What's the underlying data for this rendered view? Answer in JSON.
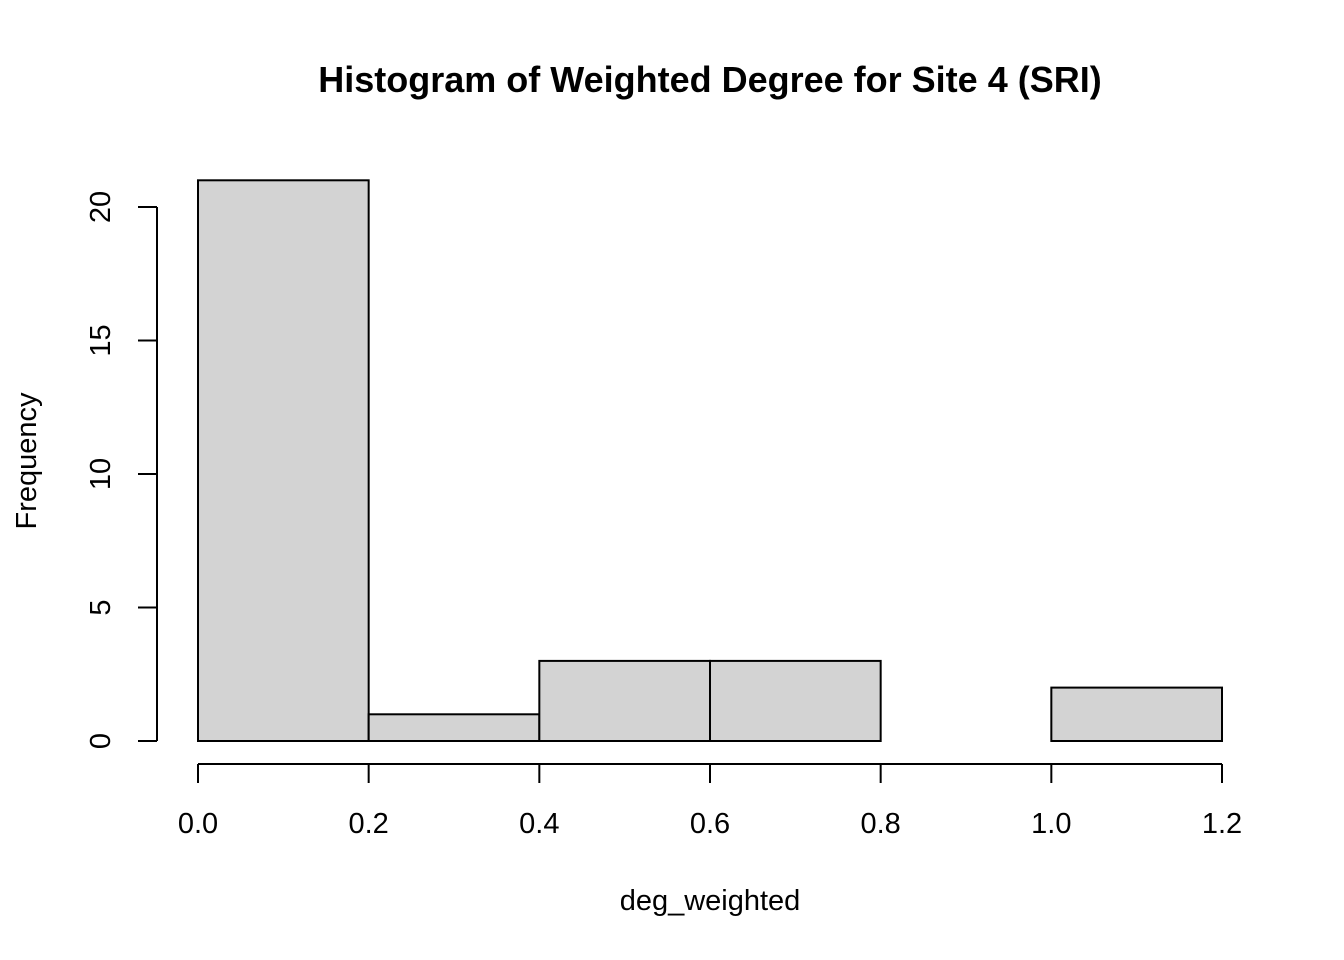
{
  "chart_data": {
    "type": "bar",
    "title": "Histogram of Weighted Degree for Site 4 (SRI)",
    "xlabel": "deg_weighted",
    "ylabel": "Frequency",
    "bins": [
      {
        "from": 0.0,
        "to": 0.2,
        "count": 21
      },
      {
        "from": 0.2,
        "to": 0.4,
        "count": 1
      },
      {
        "from": 0.4,
        "to": 0.6,
        "count": 3
      },
      {
        "from": 0.6,
        "to": 0.8,
        "count": 3
      },
      {
        "from": 0.8,
        "to": 1.0,
        "count": 0
      },
      {
        "from": 1.0,
        "to": 1.2,
        "count": 2
      }
    ],
    "xlim": [
      0.0,
      1.2
    ],
    "ylim": [
      0,
      21
    ],
    "x_ticks": [
      "0.0",
      "0.2",
      "0.4",
      "0.6",
      "0.8",
      "1.0",
      "1.2"
    ],
    "y_ticks": [
      "0",
      "5",
      "10",
      "15",
      "20"
    ],
    "grid": false,
    "bar_fill": "#d3d3d3",
    "bar_stroke": "#000000"
  }
}
